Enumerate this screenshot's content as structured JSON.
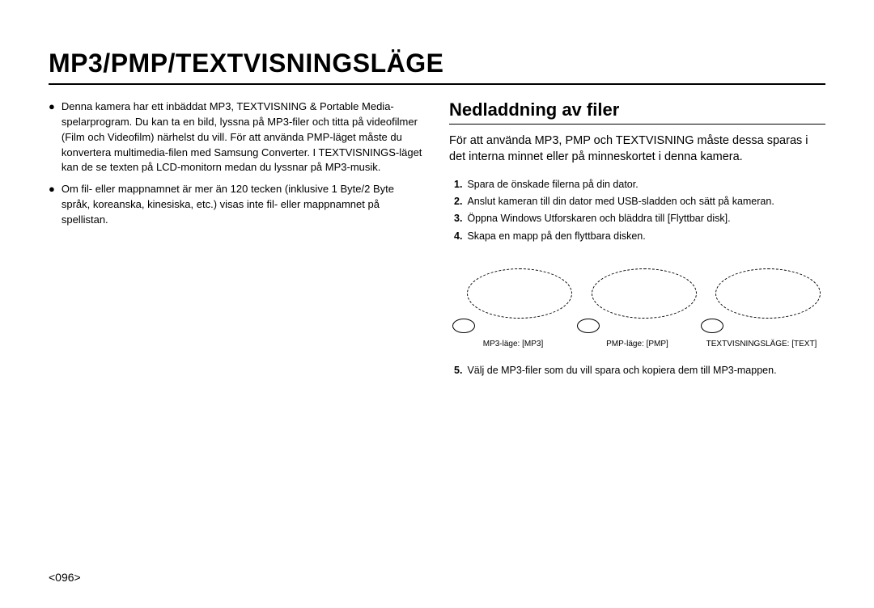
{
  "title": "MP3/PMP/TEXTVISNINGSLÄGE",
  "left": {
    "bullets": [
      "Denna kamera har ett inbäddat MP3, TEXTVISNING & Portable Media-spelarprogram. Du kan ta en bild, lyssna på MP3-filer och titta på videofilmer (Film och Videofilm) närhelst du vill. För att använda PMP-läget måste du konvertera multimedia-filen med Samsung Converter. I TEXTVISNINGS-läget kan de se texten på LCD-monitorn medan du lyssnar på MP3-musik.",
      "Om fil- eller mappnamnet är mer än 120 tecken (inklusive 1 Byte/2 Byte språk, koreanska, kinesiska, etc.) visas inte fil- eller mappnamnet på spellistan."
    ]
  },
  "right": {
    "heading": "Nedladdning av filer",
    "intro": "För att använda MP3, PMP och TEXTVISNING måste dessa sparas i det interna minnet eller på minneskortet i denna kamera.",
    "steps_a": [
      {
        "n": "1.",
        "t": "Spara de önskade filerna på din dator."
      },
      {
        "n": "2.",
        "t": "Anslut kameran till din dator med USB-sladden och sätt på kameran."
      },
      {
        "n": "3.",
        "t": "Öppna Windows Utforskaren och bläddra till [Flyttbar disk]."
      },
      {
        "n": "4.",
        "t": "Skapa en mapp på den flyttbara disken."
      }
    ],
    "captions": [
      "MP3-läge: [MP3]",
      "PMP-läge: [PMP]",
      "TEXTVISNINGSLÄGE: [TEXT]"
    ],
    "steps_b": [
      {
        "n": "5.",
        "t": "Välj de MP3-filer som du vill spara och kopiera dem till MP3-mappen."
      }
    ]
  },
  "page_number": "<096>"
}
